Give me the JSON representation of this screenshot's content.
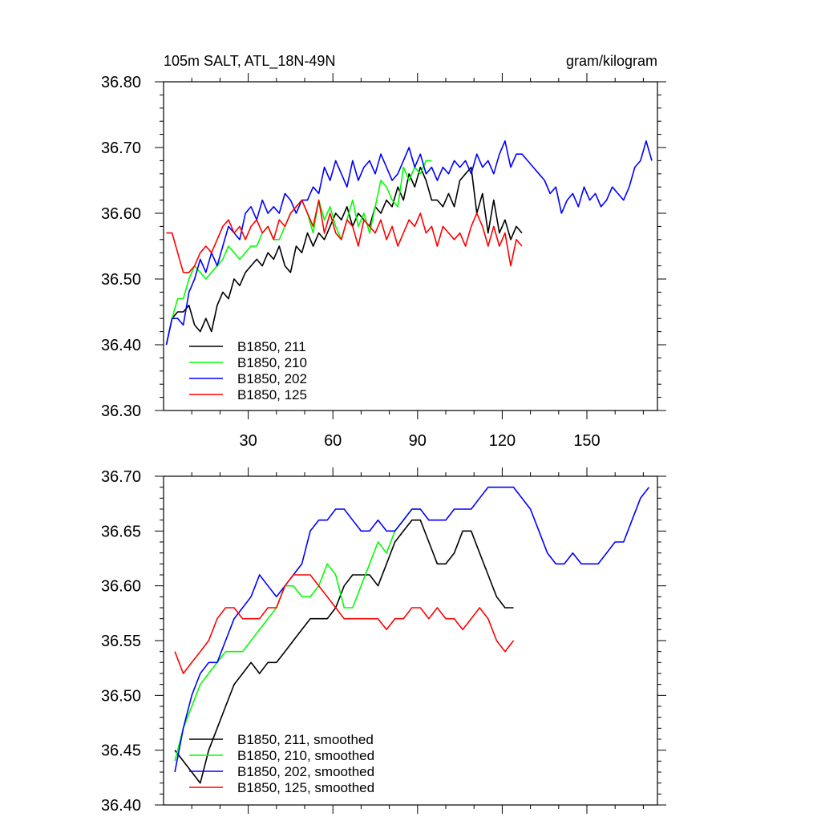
{
  "chart_data": [
    {
      "type": "line",
      "title_left": "105m SALT, ATL_18N-49N",
      "title_right": "gram/kilogram",
      "xlim": [
        0,
        175
      ],
      "ylim": [
        36.3,
        36.8
      ],
      "yticks": [
        "36.30",
        "36.40",
        "36.50",
        "36.60",
        "36.70",
        "36.80"
      ],
      "xticks": [
        "30",
        "60",
        "90",
        "120",
        "150"
      ],
      "series": [
        {
          "name": "B1850, 211",
          "color": "#000000",
          "x": [
            1,
            3,
            5,
            7,
            9,
            11,
            13,
            15,
            17,
            19,
            21,
            23,
            25,
            27,
            29,
            31,
            33,
            35,
            37,
            39,
            41,
            43,
            45,
            47,
            49,
            51,
            53,
            55,
            57,
            59,
            61,
            63,
            65,
            67,
            69,
            71,
            73,
            75,
            77,
            79,
            81,
            83,
            85,
            87,
            89,
            91,
            93,
            95,
            97,
            99,
            101,
            103,
            105,
            107,
            109,
            111,
            113,
            115,
            117,
            119,
            121,
            123,
            125,
            127
          ],
          "y": [
            36.4,
            36.44,
            36.45,
            36.45,
            36.46,
            36.43,
            36.42,
            36.44,
            36.42,
            36.46,
            36.48,
            36.47,
            36.5,
            36.49,
            36.51,
            36.52,
            36.53,
            36.52,
            36.54,
            36.53,
            36.55,
            36.52,
            36.51,
            36.55,
            36.54,
            36.57,
            36.55,
            36.57,
            36.56,
            36.58,
            36.6,
            36.59,
            36.61,
            36.58,
            36.6,
            36.59,
            36.58,
            36.61,
            36.6,
            36.62,
            36.61,
            36.64,
            36.62,
            36.66,
            36.64,
            36.67,
            36.65,
            36.62,
            36.62,
            36.61,
            36.63,
            36.61,
            36.65,
            36.66,
            36.67,
            36.6,
            36.63,
            36.57,
            36.62,
            36.57,
            36.59,
            36.56,
            36.58,
            36.57
          ]
        },
        {
          "name": "B1850, 210",
          "color": "#00ff00",
          "x": [
            1,
            3,
            5,
            7,
            9,
            11,
            13,
            15,
            17,
            19,
            21,
            23,
            25,
            27,
            29,
            31,
            33,
            35,
            37,
            39,
            41,
            43,
            45,
            47,
            49,
            51,
            53,
            55,
            57,
            59,
            61,
            63,
            65,
            67,
            69,
            71,
            73,
            75,
            77,
            79,
            81,
            83,
            85,
            87,
            89,
            91,
            93,
            95
          ],
          "y": [
            36.4,
            36.44,
            36.47,
            36.47,
            36.5,
            36.52,
            36.51,
            36.5,
            36.51,
            36.52,
            36.53,
            36.55,
            36.54,
            36.53,
            36.54,
            36.55,
            36.55,
            36.57,
            36.58,
            36.56,
            36.56,
            36.58,
            36.6,
            36.61,
            36.62,
            36.6,
            36.57,
            36.62,
            36.59,
            36.61,
            36.58,
            36.56,
            36.59,
            36.62,
            36.58,
            36.6,
            36.57,
            36.61,
            36.65,
            36.64,
            36.62,
            36.61,
            36.67,
            36.65,
            36.67,
            36.66,
            36.68,
            36.68
          ]
        },
        {
          "name": "B1850, 202",
          "color": "#0000ff",
          "x": [
            1,
            3,
            5,
            7,
            9,
            11,
            13,
            15,
            17,
            19,
            21,
            23,
            25,
            27,
            29,
            31,
            33,
            35,
            37,
            39,
            41,
            43,
            45,
            47,
            49,
            51,
            53,
            55,
            57,
            59,
            61,
            63,
            65,
            67,
            69,
            71,
            73,
            75,
            77,
            79,
            81,
            83,
            85,
            87,
            89,
            91,
            93,
            95,
            97,
            99,
            101,
            103,
            105,
            107,
            109,
            111,
            113,
            115,
            117,
            119,
            121,
            123,
            125,
            127,
            129,
            131,
            133,
            135,
            137,
            139,
            141,
            143,
            145,
            147,
            149,
            151,
            153,
            155,
            157,
            159,
            161,
            163,
            165,
            167,
            169,
            171,
            173
          ],
          "y": [
            36.4,
            36.44,
            36.44,
            36.43,
            36.48,
            36.5,
            36.53,
            36.51,
            36.54,
            36.52,
            36.55,
            36.58,
            36.57,
            36.56,
            36.6,
            36.61,
            36.59,
            36.62,
            36.6,
            36.61,
            36.6,
            36.63,
            36.62,
            36.6,
            36.62,
            36.62,
            36.64,
            36.63,
            36.67,
            36.65,
            36.68,
            36.66,
            36.64,
            36.68,
            36.65,
            36.67,
            36.68,
            36.66,
            36.69,
            36.67,
            36.65,
            36.66,
            36.68,
            36.7,
            36.67,
            36.69,
            36.66,
            36.67,
            36.65,
            36.67,
            36.66,
            36.68,
            36.67,
            36.68,
            36.66,
            36.69,
            36.67,
            36.68,
            36.66,
            36.69,
            36.71,
            36.67,
            36.69,
            36.69,
            36.68,
            36.67,
            36.66,
            36.65,
            36.63,
            36.64,
            36.6,
            36.62,
            36.63,
            36.61,
            36.64,
            36.62,
            36.63,
            36.61,
            36.62,
            36.64,
            36.63,
            36.62,
            36.64,
            36.67,
            36.68,
            36.71,
            36.68
          ]
        },
        {
          "name": "B1850, 125",
          "color": "#ff0000",
          "x": [
            1,
            3,
            5,
            7,
            9,
            11,
            13,
            15,
            17,
            19,
            21,
            23,
            25,
            27,
            29,
            31,
            33,
            35,
            37,
            39,
            41,
            43,
            45,
            47,
            49,
            51,
            53,
            55,
            57,
            59,
            61,
            63,
            65,
            67,
            69,
            71,
            73,
            75,
            77,
            79,
            81,
            83,
            85,
            87,
            89,
            91,
            93,
            95,
            97,
            99,
            101,
            103,
            105,
            107,
            109,
            111,
            113,
            115,
            117,
            119,
            121,
            123,
            125,
            127
          ],
          "y": [
            36.57,
            36.57,
            36.54,
            36.51,
            36.51,
            36.52,
            36.54,
            36.55,
            36.54,
            36.56,
            36.58,
            36.59,
            36.57,
            36.58,
            36.56,
            36.58,
            36.59,
            36.57,
            36.58,
            36.56,
            36.59,
            36.58,
            36.6,
            36.61,
            36.62,
            36.6,
            36.58,
            36.62,
            36.57,
            36.6,
            36.57,
            36.56,
            36.59,
            36.58,
            36.55,
            36.59,
            36.58,
            36.57,
            36.59,
            36.56,
            36.58,
            36.55,
            36.57,
            36.59,
            36.58,
            36.6,
            36.57,
            36.58,
            36.55,
            36.58,
            36.57,
            36.56,
            36.57,
            36.55,
            36.58,
            36.6,
            36.58,
            36.55,
            36.58,
            36.55,
            36.57,
            36.52,
            36.56,
            36.55
          ]
        }
      ]
    },
    {
      "type": "line",
      "xlim": [
        0,
        175
      ],
      "ylim": [
        36.4,
        36.7
      ],
      "yticks": [
        "36.40",
        "36.45",
        "36.50",
        "36.55",
        "36.60",
        "36.65",
        "36.70"
      ],
      "series": [
        {
          "name": "B1850, 211, smoothed",
          "color": "#000000",
          "x": [
            4,
            7,
            10,
            13,
            16,
            19,
            22,
            25,
            28,
            31,
            34,
            37,
            40,
            43,
            46,
            49,
            52,
            55,
            58,
            61,
            64,
            67,
            70,
            73,
            76,
            79,
            82,
            85,
            88,
            91,
            94,
            97,
            100,
            103,
            106,
            109,
            112,
            115,
            118,
            121,
            124
          ],
          "y": [
            36.45,
            36.44,
            36.43,
            36.42,
            36.45,
            36.47,
            36.49,
            36.51,
            36.52,
            36.53,
            36.52,
            36.53,
            36.53,
            36.54,
            36.55,
            36.56,
            36.57,
            36.57,
            36.57,
            36.58,
            36.6,
            36.61,
            36.61,
            36.61,
            36.6,
            36.62,
            36.64,
            36.65,
            36.66,
            36.66,
            36.64,
            36.62,
            36.62,
            36.63,
            36.65,
            36.65,
            36.63,
            36.61,
            36.59,
            36.58,
            36.58
          ]
        },
        {
          "name": "B1850, 210, smoothed",
          "color": "#00ff00",
          "x": [
            4,
            7,
            10,
            13,
            16,
            19,
            22,
            25,
            28,
            31,
            34,
            37,
            40,
            43,
            46,
            49,
            52,
            55,
            58,
            61,
            64,
            67,
            70,
            73,
            76,
            79,
            82,
            85,
            88,
            91
          ],
          "y": [
            36.44,
            36.47,
            36.49,
            36.51,
            36.52,
            36.53,
            36.54,
            36.54,
            36.54,
            36.55,
            36.56,
            36.57,
            36.58,
            36.6,
            36.6,
            36.59,
            36.59,
            36.6,
            36.62,
            36.61,
            36.58,
            36.58,
            36.6,
            36.62,
            36.64,
            36.63,
            36.65,
            36.66,
            36.67,
            36.67
          ]
        },
        {
          "name": "B1850, 202, smoothed",
          "color": "#0000ff",
          "x": [
            4,
            7,
            10,
            13,
            16,
            19,
            22,
            25,
            28,
            31,
            34,
            37,
            40,
            43,
            46,
            49,
            52,
            55,
            58,
            61,
            64,
            67,
            70,
            73,
            76,
            79,
            82,
            85,
            88,
            91,
            94,
            97,
            100,
            103,
            106,
            109,
            112,
            115,
            118,
            121,
            124,
            127,
            130,
            133,
            136,
            139,
            142,
            145,
            148,
            151,
            154,
            157,
            160,
            163,
            166,
            169,
            172
          ],
          "y": [
            36.43,
            36.47,
            36.5,
            36.52,
            36.53,
            36.53,
            36.55,
            36.57,
            36.58,
            36.59,
            36.61,
            36.6,
            36.59,
            36.6,
            36.61,
            36.62,
            36.65,
            36.66,
            36.66,
            36.67,
            36.67,
            36.66,
            36.65,
            36.65,
            36.66,
            36.65,
            36.65,
            36.66,
            36.67,
            36.67,
            36.66,
            36.66,
            36.66,
            36.67,
            36.67,
            36.67,
            36.68,
            36.69,
            36.69,
            36.69,
            36.69,
            36.68,
            36.67,
            36.65,
            36.63,
            36.62,
            36.62,
            36.63,
            36.62,
            36.62,
            36.62,
            36.63,
            36.64,
            36.64,
            36.66,
            36.68,
            36.69
          ]
        },
        {
          "name": "B1850, 125, smoothed",
          "color": "#ff0000",
          "x": [
            4,
            7,
            10,
            13,
            16,
            19,
            22,
            25,
            28,
            31,
            34,
            37,
            40,
            43,
            46,
            49,
            52,
            55,
            58,
            61,
            64,
            67,
            70,
            73,
            76,
            79,
            82,
            85,
            88,
            91,
            94,
            97,
            100,
            103,
            106,
            109,
            112,
            115,
            118,
            121,
            124
          ],
          "y": [
            36.54,
            36.52,
            36.53,
            36.54,
            36.55,
            36.57,
            36.58,
            36.58,
            36.57,
            36.57,
            36.57,
            36.58,
            36.58,
            36.6,
            36.61,
            36.61,
            36.61,
            36.6,
            36.59,
            36.58,
            36.57,
            36.57,
            36.57,
            36.57,
            36.57,
            36.56,
            36.57,
            36.57,
            36.58,
            36.58,
            36.57,
            36.58,
            36.57,
            36.57,
            36.56,
            36.57,
            36.58,
            36.57,
            36.55,
            36.54,
            36.55
          ]
        }
      ]
    }
  ]
}
